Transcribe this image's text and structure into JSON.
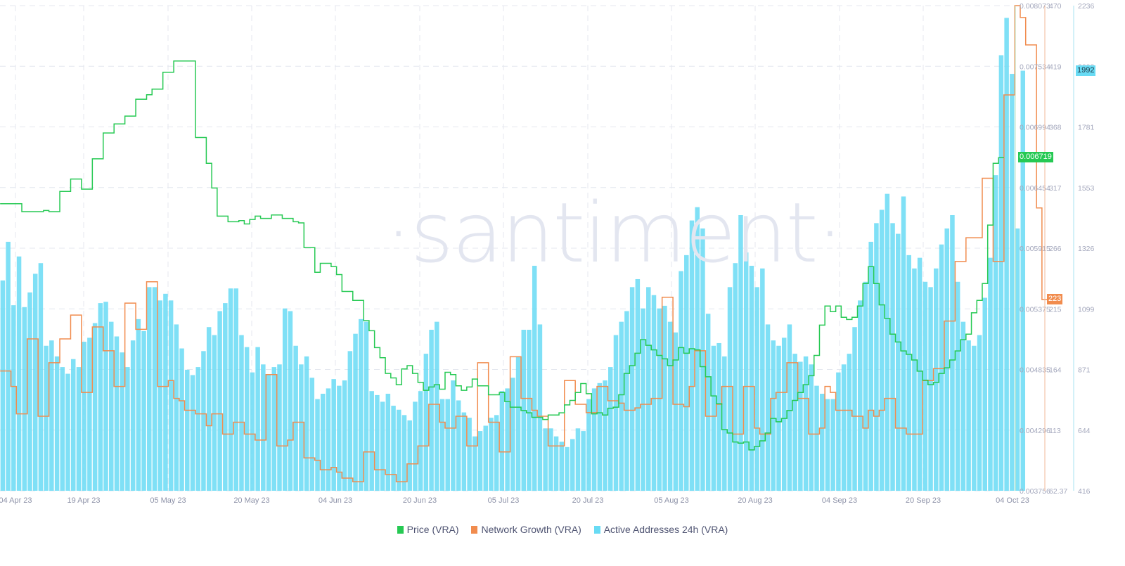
{
  "watermark": "·santiment·",
  "legend": [
    {
      "label": "Price (VRA)",
      "color": "#26c953"
    },
    {
      "label": "Network Growth (VRA)",
      "color": "#f18c4e"
    },
    {
      "label": "Active Addresses 24h (VRA)",
      "color": "#68dbf4"
    }
  ],
  "badges": {
    "price": {
      "text": "0.006719",
      "color": "#26c953"
    },
    "network_growth": {
      "text": "223",
      "color": "#f18c4e"
    },
    "active_addresses": {
      "text": "1992",
      "color": "#68dbf4"
    }
  },
  "chart_data": {
    "type": "line",
    "title": "",
    "xlabel": "",
    "x_ticks": [
      "04 Apr 23",
      "19 Apr 23",
      "05 May 23",
      "20 May 23",
      "04 Jun 23",
      "20 Jun 23",
      "05 Jul 23",
      "20 Jul 23",
      "05 Aug 23",
      "20 Aug 23",
      "04 Sep 23",
      "20 Sep 23",
      "04 Oct 23"
    ],
    "x_range": [
      "2023-04-04",
      "2023-10-04"
    ],
    "grid": true,
    "legend_position": "bottom",
    "axes": {
      "price": {
        "ticks": [
          "0.008073",
          "0.007534",
          "0.006994",
          "0.006454",
          "0.005915",
          "0.005375",
          "0.004835",
          "0.004296",
          "0.003756"
        ],
        "range": [
          0.003756,
          0.008073
        ],
        "color": "#26c953"
      },
      "network_growth": {
        "ticks": [
          "470",
          "419",
          "368",
          "317",
          "266",
          "215",
          "164",
          "113",
          "62.37"
        ],
        "range": [
          62.37,
          470
        ],
        "color": "#f18c4e"
      },
      "active_addresses": {
        "ticks": [
          "2236",
          "2008",
          "1781",
          "1553",
          "1326",
          "1099",
          "871",
          "644",
          "416"
        ],
        "range": [
          416,
          2236
        ],
        "color": "#68dbf4"
      }
    },
    "series": [
      {
        "name": "Price (VRA)",
        "type": "line",
        "axis": "price",
        "color": "#26c953",
        "values": [
          0.00631,
          0.00631,
          0.00631,
          0.00631,
          0.00624,
          0.00624,
          0.00624,
          0.00624,
          0.00625,
          0.00624,
          0.00624,
          0.00642,
          0.00642,
          0.00653,
          0.00653,
          0.00644,
          0.00644,
          0.00671,
          0.00671,
          0.00694,
          0.00694,
          0.00702,
          0.00702,
          0.00709,
          0.00709,
          0.00724,
          0.00724,
          0.00728,
          0.00733,
          0.00733,
          0.00748,
          0.00748,
          0.00758,
          0.00758,
          0.00758,
          0.00758,
          0.0069,
          0.0069,
          0.00667,
          0.00645,
          0.0062,
          0.0062,
          0.00615,
          0.00615,
          0.00616,
          0.00613,
          0.00617,
          0.0062,
          0.00618,
          0.00618,
          0.00621,
          0.00621,
          0.00618,
          0.00618,
          0.00615,
          0.00614,
          0.00592,
          0.00592,
          0.0057,
          0.00578,
          0.00578,
          0.00575,
          0.00568,
          0.00553,
          0.00553,
          0.00545,
          0.00545,
          0.00527,
          0.00518,
          0.00503,
          0.00494,
          0.0048,
          0.00476,
          0.0047,
          0.00484,
          0.00487,
          0.0048,
          0.00472,
          0.00465,
          0.00468,
          0.0047,
          0.00466,
          0.00481,
          0.00479,
          0.00469,
          0.00465,
          0.00468,
          0.00475,
          0.00469,
          0.00469,
          0.00461,
          0.00461,
          0.00463,
          0.00455,
          0.0045,
          0.0045,
          0.00447,
          0.00445,
          0.00441,
          0.00441,
          0.00439,
          0.00443,
          0.00443,
          0.00445,
          0.00452,
          0.00456,
          0.00463,
          0.00471,
          0.00462,
          0.00444,
          0.00445,
          0.00443,
          0.00449,
          0.0045,
          0.00461,
          0.0048,
          0.00487,
          0.00498,
          0.0051,
          0.00505,
          0.00501,
          0.00496,
          0.00493,
          0.00487,
          0.00492,
          0.00503,
          0.00498,
          0.00502,
          0.00501,
          0.00486,
          0.00477,
          0.0046,
          0.00453,
          0.0043,
          0.00427,
          0.00419,
          0.00418,
          0.00419,
          0.00412,
          0.00415,
          0.0042,
          0.00427,
          0.0044,
          0.00437,
          0.0044,
          0.00447,
          0.00456,
          0.00463,
          0.0047,
          0.00478,
          0.00496,
          0.00523,
          0.0054,
          0.00535,
          0.0054,
          0.0053,
          0.00528,
          0.0053,
          0.0054,
          0.0056,
          0.00575,
          0.0056,
          0.00541,
          0.00529,
          0.00515,
          0.00508,
          0.005,
          0.00497,
          0.00492,
          0.00482,
          0.00474,
          0.0047,
          0.00472,
          0.0048,
          0.00485,
          0.00492,
          0.005,
          0.0051,
          0.00515,
          0.00534,
          0.00545,
          0.0056,
          0.00612,
          0.00667,
          0.00672
        ],
        "current": 0.006719
      },
      {
        "name": "Network Growth (VRA)",
        "type": "line",
        "axis": "network_growth",
        "color": "#f18c4e",
        "values": [
          163,
          163,
          150,
          127,
          127,
          190,
          190,
          125,
          125,
          170,
          170,
          190,
          190,
          210,
          210,
          145,
          145,
          200,
          200,
          180,
          180,
          150,
          150,
          220,
          220,
          198,
          198,
          238,
          238,
          150,
          150,
          155,
          140,
          138,
          130,
          130,
          127,
          127,
          117,
          127,
          127,
          110,
          110,
          120,
          120,
          110,
          110,
          105,
          105,
          160,
          160,
          100,
          100,
          105,
          120,
          120,
          90,
          90,
          88,
          80,
          80,
          82,
          78,
          73,
          73,
          70,
          70,
          95,
          95,
          80,
          80,
          76,
          76,
          70,
          70,
          85,
          85,
          100,
          100,
          135,
          135,
          120,
          115,
          115,
          125,
          125,
          100,
          100,
          170,
          170,
          120,
          120,
          95,
          95,
          175,
          175,
          140,
          140,
          130,
          125,
          125,
          100,
          100,
          100,
          155,
          155,
          135,
          135,
          128,
          128,
          150,
          150,
          138,
          138,
          136,
          130,
          130,
          132,
          135,
          135,
          140,
          140,
          225,
          225,
          135,
          135,
          133,
          150,
          180,
          180,
          125,
          125,
          135,
          150,
          150,
          110,
          110,
          150,
          150,
          115,
          110,
          110,
          140,
          145,
          145,
          170,
          170,
          140,
          140,
          110,
          110,
          115,
          150,
          145,
          130,
          130,
          130,
          125,
          125,
          115,
          130,
          125,
          130,
          140,
          140,
          115,
          115,
          110,
          110,
          110,
          155,
          155,
          165,
          165,
          205,
          205,
          255,
          255,
          275,
          275,
          275,
          325,
          325,
          255,
          255,
          395,
          395,
          470,
          460,
          437,
          437,
          300,
          223
        ],
        "current": 223
      },
      {
        "name": "Active Addresses 24h (VRA)",
        "type": "bar",
        "axis": "active_addresses",
        "color": "#68dbf4",
        "values": [
          1205,
          1350,
          1112,
          1295,
          1105,
          1160,
          1230,
          1270,
          960,
          980,
          920,
          880,
          855,
          910,
          880,
          975,
          990,
          1045,
          1120,
          1125,
          1050,
          995,
          935,
          880,
          980,
          1060,
          1015,
          1180,
          1180,
          1130,
          1155,
          1130,
          1040,
          950,
          870,
          850,
          880,
          940,
          1030,
          1000,
          1090,
          1120,
          1175,
          1175,
          1000,
          955,
          860,
          955,
          890,
          850,
          880,
          890,
          1100,
          1090,
          960,
          890,
          920,
          840,
          760,
          780,
          800,
          835,
          810,
          830,
          940,
          1005,
          1060,
          1050,
          790,
          775,
          750,
          780,
          735,
          720,
          700,
          680,
          750,
          790,
          930,
          1020,
          1050,
          760,
          760,
          830,
          755,
          710,
          690,
          620,
          640,
          660,
          690,
          700,
          790,
          800,
          840,
          920,
          1020,
          1020,
          1260,
          1040,
          650,
          650,
          620,
          600,
          580,
          610,
          650,
          640,
          760,
          800,
          820,
          830,
          880,
          1000,
          1050,
          1090,
          1180,
          1210,
          1100,
          1180,
          1150,
          1100,
          1110,
          1050,
          1010,
          1240,
          1300,
          1430,
          1480,
          1400,
          1080,
          960,
          970,
          920,
          1180,
          1270,
          1450,
          1310,
          1260,
          1180,
          1250,
          1040,
          980,
          960,
          990,
          1040,
          930,
          900,
          920,
          890,
          810,
          780,
          760,
          760,
          860,
          890,
          930,
          1030,
          1130,
          1200,
          1350,
          1420,
          1470,
          1530,
          1420,
          1380,
          1520,
          1300,
          1250,
          1290,
          1200,
          1180,
          1250,
          1340,
          1400,
          1450,
          1200,
          1050,
          980,
          960,
          1000,
          1140,
          1290,
          1600,
          2050,
          2190,
          1980,
          1400,
          1992
        ],
        "current": 1992
      }
    ]
  }
}
